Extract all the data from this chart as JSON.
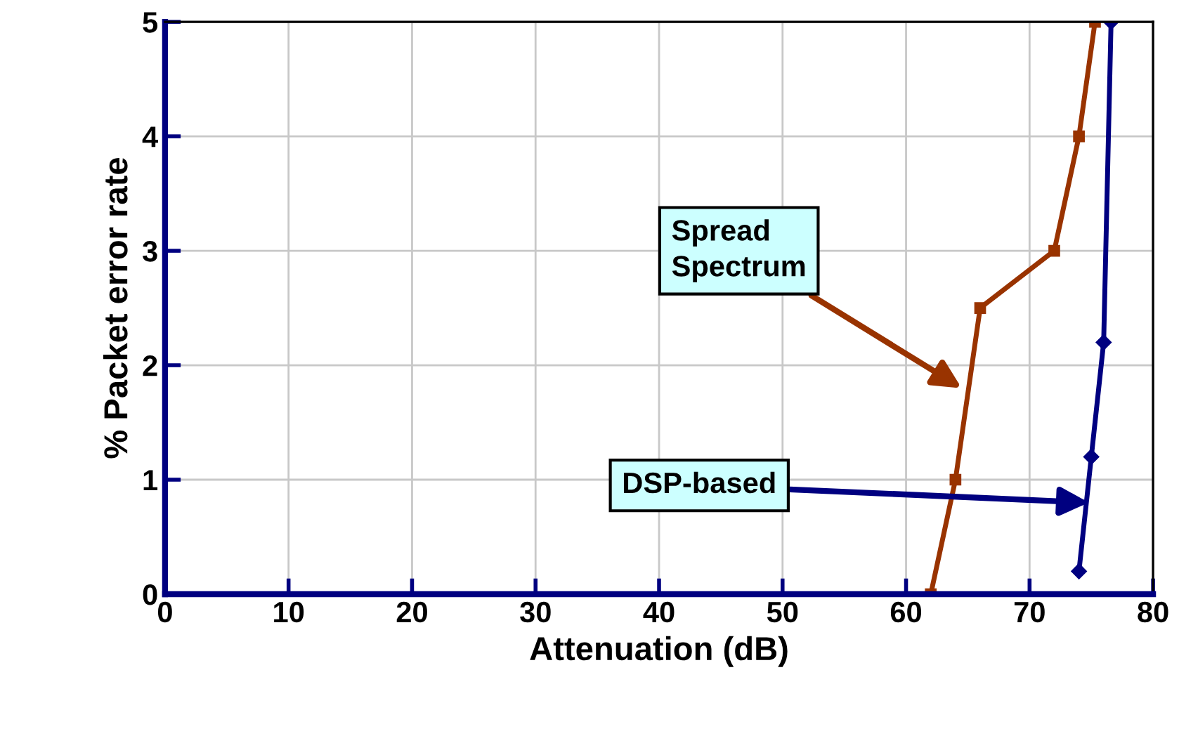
{
  "chart_data": {
    "type": "line",
    "xlabel": "Attenuation (dB)",
    "ylabel": "% Packet error rate",
    "xlim": [
      0,
      80
    ],
    "ylim": [
      0,
      5
    ],
    "xticks": [
      0,
      10,
      20,
      30,
      40,
      50,
      60,
      70,
      80
    ],
    "yticks": [
      0,
      1,
      2,
      3,
      4,
      5
    ],
    "grid": true,
    "legend": false,
    "series": [
      {
        "color": "#993300",
        "marker": "square",
        "x": [
          62,
          64,
          66,
          72,
          74,
          75.3
        ],
        "values": [
          0,
          1,
          2.5,
          3,
          4,
          5
        ]
      },
      {
        "color": "#000080",
        "marker": "diamond",
        "x": [
          74,
          75,
          76,
          76.6
        ],
        "values": [
          0.2,
          1.2,
          2.2,
          5
        ]
      }
    ],
    "annotations": [
      {
        "text": "Spread\nSpectrum",
        "x": 64.5,
        "y": 1.8
      },
      {
        "text": "DSP-based",
        "x": 74.8,
        "y": 0.8
      }
    ]
  }
}
